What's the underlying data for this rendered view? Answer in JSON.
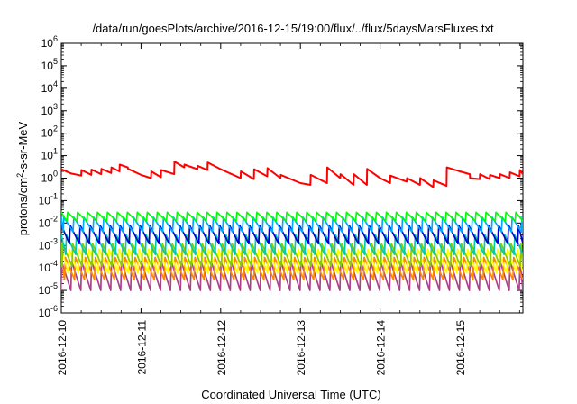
{
  "chart_data": {
    "type": "line",
    "title": "/data/run/goesPlots/archive/2016-12-15/19:00/flux/../flux/5daysMarsFluxes.txt",
    "xlabel": "Coordinated Universal Time (UTC)",
    "ylabel": {
      "base": "protons/cm",
      "sup": "2",
      "rest": "-s-sr-MeV"
    },
    "y_scale": "log",
    "ylim": [
      1e-06,
      1000000.0
    ],
    "y_ticks": [
      {
        "value": 1e-06,
        "base": "10",
        "exp": "-6"
      },
      {
        "value": 1e-05,
        "base": "10",
        "exp": "-5"
      },
      {
        "value": 0.0001,
        "base": "10",
        "exp": "-4"
      },
      {
        "value": 0.001,
        "base": "10",
        "exp": "-3"
      },
      {
        "value": 0.01,
        "base": "10",
        "exp": "-2"
      },
      {
        "value": 0.1,
        "base": "10",
        "exp": "-1"
      },
      {
        "value": 1,
        "base": "10",
        "exp": "0"
      },
      {
        "value": 10,
        "base": "10",
        "exp": "1"
      },
      {
        "value": 100,
        "base": "10",
        "exp": "2"
      },
      {
        "value": 1000,
        "base": "10",
        "exp": "3"
      },
      {
        "value": 10000,
        "base": "10",
        "exp": "4"
      },
      {
        "value": 100000,
        "base": "10",
        "exp": "5"
      },
      {
        "value": 1000000,
        "base": "10",
        "exp": "6"
      }
    ],
    "xlim": [
      "2016-12-10 00:00",
      "2016-12-15 19:00"
    ],
    "x_ticks": [
      "2016-12-10",
      "2016-12-11",
      "2016-12-12",
      "2016-12-13",
      "2016-12-14",
      "2016-12-15"
    ],
    "grid": false,
    "legend": "none",
    "series": [
      {
        "color": "#ff0000",
        "x": [
          "2016-12-10 00:00",
          "2016-12-10 03:00",
          "2016-12-10 06:00",
          "2016-12-10 06:05",
          "2016-12-10 09:00",
          "2016-12-10 09:05",
          "2016-12-10 12:00",
          "2016-12-10 12:05",
          "2016-12-10 15:00",
          "2016-12-10 15:05",
          "2016-12-10 17:30",
          "2016-12-10 17:35",
          "2016-12-10 20:00",
          "2016-12-10 20:05",
          "2016-12-11 00:00",
          "2016-12-11 03:00",
          "2016-12-11 03:05",
          "2016-12-11 06:00",
          "2016-12-11 06:05",
          "2016-12-11 10:00",
          "2016-12-11 10:05",
          "2016-12-11 13:00",
          "2016-12-11 13:05",
          "2016-12-11 17:00",
          "2016-12-11 17:05",
          "2016-12-11 20:00",
          "2016-12-11 20:05",
          "2016-12-12 00:00",
          "2016-12-12 06:00",
          "2016-12-12 06:05",
          "2016-12-12 10:00",
          "2016-12-12 10:05",
          "2016-12-12 14:00",
          "2016-12-12 14:05",
          "2016-12-12 18:00",
          "2016-12-12 18:05",
          "2016-12-13 00:00",
          "2016-12-13 03:00",
          "2016-12-13 03:05",
          "2016-12-13 08:00",
          "2016-12-13 08:05",
          "2016-12-13 12:00",
          "2016-12-13 12:05",
          "2016-12-13 16:00",
          "2016-12-13 16:05",
          "2016-12-13 20:00",
          "2016-12-13 20:05",
          "2016-12-14 00:00",
          "2016-12-14 03:00",
          "2016-12-14 03:05",
          "2016-12-14 08:00",
          "2016-12-14 08:05",
          "2016-12-14 12:00",
          "2016-12-14 12:05",
          "2016-12-14 16:00",
          "2016-12-14 16:05",
          "2016-12-14 20:00",
          "2016-12-14 20:05",
          "2016-12-15 00:00",
          "2016-12-15 03:00",
          "2016-12-15 03:05",
          "2016-12-15 06:00",
          "2016-12-15 06:05",
          "2016-12-15 09:00",
          "2016-12-15 09:05",
          "2016-12-15 12:00",
          "2016-12-15 12:05",
          "2016-12-15 15:00",
          "2016-12-15 15:05",
          "2016-12-15 18:00",
          "2016-12-15 18:05",
          "2016-12-15 19:00"
        ],
        "values": [
          2.5,
          1.6,
          1.3,
          2.3,
          1.4,
          2.4,
          1.5,
          2.6,
          1.7,
          3.0,
          2.0,
          4.0,
          3.0,
          2.6,
          1.4,
          1.0,
          2.0,
          1.1,
          2.3,
          1.5,
          5.5,
          3.0,
          4.0,
          2.5,
          3.5,
          2.3,
          5.0,
          2.5,
          1.0,
          2.0,
          0.9,
          2.5,
          1.2,
          2.8,
          1.0,
          1.4,
          0.6,
          0.5,
          1.4,
          0.6,
          3.0,
          1.0,
          1.5,
          0.5,
          1.5,
          0.5,
          2.6,
          1.0,
          0.6,
          1.3,
          0.7,
          1.0,
          0.5,
          1.0,
          0.4,
          0.8,
          0.45,
          3.0,
          2.0,
          1.5,
          1.0,
          0.9,
          1.5,
          0.9,
          1.4,
          1.0,
          1.5,
          1.0,
          1.8,
          1.2,
          2.3,
          1.5
        ]
      },
      {
        "color": "#00ff00",
        "shape": "sawtooth",
        "high": 0.03,
        "low": 0.012
      },
      {
        "color": "#00aaff",
        "shape": "sawtooth",
        "high": 0.018,
        "low": 0.004
      },
      {
        "color": "#0000cc",
        "shape": "sawtooth",
        "high": 0.008,
        "low": 0.0012
      },
      {
        "color": "#00ccaa",
        "shape": "sawtooth",
        "high": 0.003,
        "low": 0.0004
      },
      {
        "color": "#88cc00",
        "shape": "sawtooth",
        "high": 0.0012,
        "low": 0.00012
      },
      {
        "color": "#ffff00",
        "shape": "sawtooth",
        "high": 0.0007,
        "low": 6e-05
      },
      {
        "color": "#ff8800",
        "shape": "sawtooth",
        "high": 0.0003,
        "low": 3e-05
      },
      {
        "color": "#aa4488",
        "shape": "sawtooth",
        "high": 0.0002,
        "low": 1e-05
      }
    ]
  }
}
